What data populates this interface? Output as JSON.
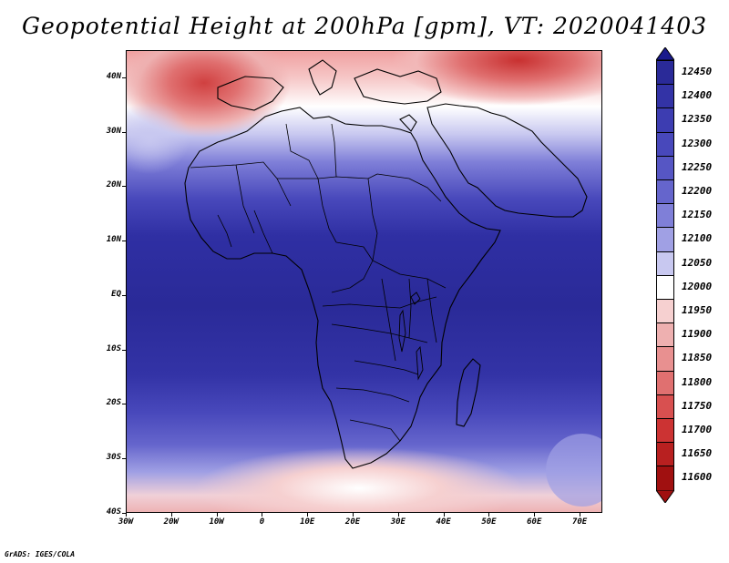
{
  "title": "Geopotential Height at 200hPa [gpm], VT: 2020041403",
  "footer": "GrADS: IGES/COLA",
  "map": {
    "projection": "latlon",
    "region": "Africa",
    "lon_range": [
      -30,
      75
    ],
    "lat_range": [
      -40,
      45
    ],
    "variable": "Geopotential Height at 200hPa",
    "units": "gpm",
    "valid_time": "2020041403"
  },
  "axes": {
    "y_ticks": [
      "40N",
      "30N",
      "20N",
      "10N",
      "EQ",
      "10S",
      "20S",
      "30S",
      "40S"
    ],
    "x_ticks": [
      "30W",
      "20W",
      "10W",
      "0",
      "10E",
      "20E",
      "30E",
      "40E",
      "50E",
      "60E",
      "70E"
    ]
  },
  "colorbar": {
    "labels": [
      "12450",
      "12400",
      "12350",
      "12300",
      "12250",
      "12200",
      "12150",
      "12100",
      "12050",
      "12000",
      "11950",
      "11900",
      "11850",
      "11800",
      "11750",
      "11700",
      "11650",
      "11600"
    ],
    "colors": [
      "#1a1a8c",
      "#2a2a98",
      "#3333a6",
      "#3d3db1",
      "#4848bb",
      "#5656c4",
      "#6565cc",
      "#7f7fd8",
      "#a0a0e4",
      "#c8c8f0",
      "#ffffff",
      "#f6d0d0",
      "#eeb0b0",
      "#e89090",
      "#e07070",
      "#d85050",
      "#cc3333",
      "#b82020",
      "#a01010"
    ]
  }
}
